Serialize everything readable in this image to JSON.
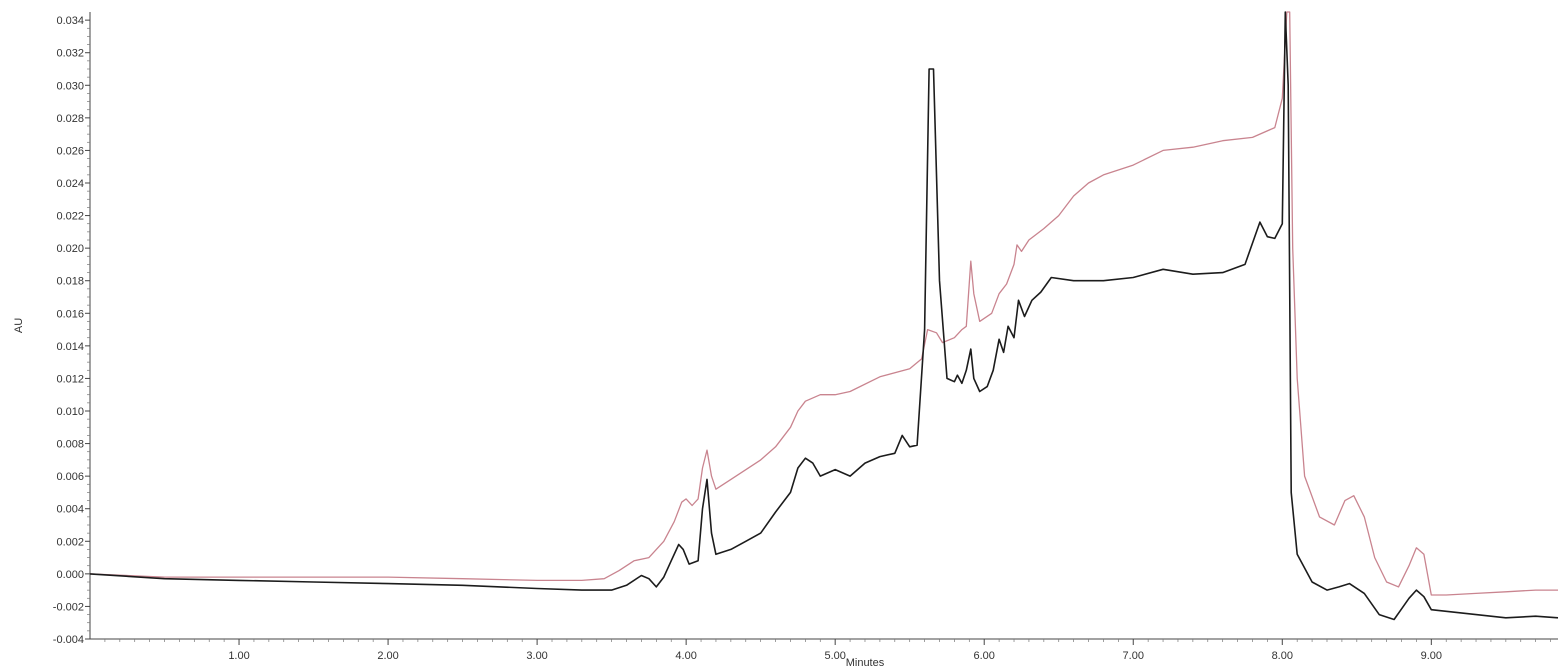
{
  "chart_data": {
    "type": "line",
    "xlabel": "Minutes",
    "ylabel": "AU",
    "xlim": [
      0.0,
      9.85
    ],
    "ylim": [
      -0.004,
      0.0345
    ],
    "x_ticks": [
      1.0,
      2.0,
      3.0,
      4.0,
      5.0,
      6.0,
      7.0,
      8.0,
      9.0
    ],
    "x_tick_labels": [
      "1.00",
      "2.00",
      "3.00",
      "4.00",
      "5.00",
      "6.00",
      "7.00",
      "8.00",
      "9.00"
    ],
    "y_ticks": [
      -0.004,
      -0.002,
      0.0,
      0.002,
      0.004,
      0.006,
      0.008,
      0.01,
      0.012,
      0.014,
      0.016,
      0.018,
      0.02,
      0.022,
      0.024,
      0.026,
      0.028,
      0.03,
      0.032,
      0.034
    ],
    "y_tick_labels": [
      "-0.004",
      "-0.002",
      "0.000",
      "0.002",
      "0.004",
      "0.006",
      "0.008",
      "0.010",
      "0.012",
      "0.014",
      "0.016",
      "0.018",
      "0.020",
      "0.022",
      "0.024",
      "0.026",
      "0.028",
      "0.030",
      "0.032",
      "0.034"
    ],
    "grid": false,
    "series": [
      {
        "color": "#c9848f",
        "points": [
          [
            0.0,
            0.0
          ],
          [
            0.5,
            -0.0002
          ],
          [
            1.0,
            -0.0002
          ],
          [
            1.5,
            -0.0002
          ],
          [
            2.0,
            -0.0002
          ],
          [
            2.5,
            -0.0003
          ],
          [
            3.0,
            -0.0004
          ],
          [
            3.3,
            -0.0004
          ],
          [
            3.45,
            -0.0003
          ],
          [
            3.55,
            0.0002
          ],
          [
            3.65,
            0.0008
          ],
          [
            3.75,
            0.001
          ],
          [
            3.85,
            0.002
          ],
          [
            3.92,
            0.0032
          ],
          [
            3.97,
            0.0044
          ],
          [
            4.0,
            0.0046
          ],
          [
            4.04,
            0.0042
          ],
          [
            4.08,
            0.0046
          ],
          [
            4.11,
            0.0065
          ],
          [
            4.14,
            0.0076
          ],
          [
            4.17,
            0.006
          ],
          [
            4.2,
            0.0052
          ],
          [
            4.3,
            0.0058
          ],
          [
            4.5,
            0.007
          ],
          [
            4.6,
            0.0078
          ],
          [
            4.7,
            0.009
          ],
          [
            4.75,
            0.01
          ],
          [
            4.8,
            0.0106
          ],
          [
            4.9,
            0.011
          ],
          [
            5.0,
            0.011
          ],
          [
            5.1,
            0.0112
          ],
          [
            5.3,
            0.0121
          ],
          [
            5.5,
            0.0126
          ],
          [
            5.58,
            0.0132
          ],
          [
            5.62,
            0.015
          ],
          [
            5.68,
            0.0148
          ],
          [
            5.72,
            0.0142
          ],
          [
            5.8,
            0.0145
          ],
          [
            5.85,
            0.015
          ],
          [
            5.88,
            0.0152
          ],
          [
            5.91,
            0.0192
          ],
          [
            5.93,
            0.0172
          ],
          [
            5.97,
            0.0155
          ],
          [
            6.05,
            0.016
          ],
          [
            6.1,
            0.0172
          ],
          [
            6.15,
            0.0178
          ],
          [
            6.2,
            0.019
          ],
          [
            6.22,
            0.0202
          ],
          [
            6.25,
            0.0198
          ],
          [
            6.3,
            0.0205
          ],
          [
            6.4,
            0.0212
          ],
          [
            6.5,
            0.022
          ],
          [
            6.6,
            0.0232
          ],
          [
            6.7,
            0.024
          ],
          [
            6.8,
            0.0245
          ],
          [
            7.0,
            0.0251
          ],
          [
            7.2,
            0.026
          ],
          [
            7.4,
            0.0262
          ],
          [
            7.6,
            0.0266
          ],
          [
            7.8,
            0.0268
          ],
          [
            7.95,
            0.0274
          ],
          [
            8.0,
            0.0292
          ],
          [
            8.03,
            0.0345
          ],
          [
            8.05,
            0.0345
          ],
          [
            8.07,
            0.02
          ],
          [
            8.1,
            0.012
          ],
          [
            8.15,
            0.006
          ],
          [
            8.25,
            0.0035
          ],
          [
            8.35,
            0.003
          ],
          [
            8.42,
            0.0045
          ],
          [
            8.48,
            0.0048
          ],
          [
            8.55,
            0.0035
          ],
          [
            8.62,
            0.001
          ],
          [
            8.7,
            -0.0005
          ],
          [
            8.78,
            -0.0008
          ],
          [
            8.85,
            0.0005
          ],
          [
            8.9,
            0.0016
          ],
          [
            8.95,
            0.0012
          ],
          [
            9.0,
            -0.0013
          ],
          [
            9.1,
            -0.0013
          ],
          [
            9.3,
            -0.0012
          ],
          [
            9.5,
            -0.0011
          ],
          [
            9.7,
            -0.001
          ],
          [
            9.85,
            -0.001
          ]
        ]
      },
      {
        "color": "#1c1c1c",
        "points": [
          [
            0.0,
            0.0
          ],
          [
            0.5,
            -0.0003
          ],
          [
            1.0,
            -0.0004
          ],
          [
            1.5,
            -0.0005
          ],
          [
            2.0,
            -0.0006
          ],
          [
            2.5,
            -0.0007
          ],
          [
            3.0,
            -0.0009
          ],
          [
            3.3,
            -0.001
          ],
          [
            3.5,
            -0.001
          ],
          [
            3.6,
            -0.0007
          ],
          [
            3.7,
            -0.0001
          ],
          [
            3.75,
            -0.0003
          ],
          [
            3.8,
            -0.0008
          ],
          [
            3.85,
            -0.0002
          ],
          [
            3.9,
            0.0008
          ],
          [
            3.95,
            0.0018
          ],
          [
            3.98,
            0.0015
          ],
          [
            4.02,
            0.0006
          ],
          [
            4.08,
            0.0008
          ],
          [
            4.11,
            0.004
          ],
          [
            4.14,
            0.0058
          ],
          [
            4.17,
            0.0025
          ],
          [
            4.2,
            0.0012
          ],
          [
            4.3,
            0.0015
          ],
          [
            4.4,
            0.002
          ],
          [
            4.5,
            0.0025
          ],
          [
            4.6,
            0.0038
          ],
          [
            4.7,
            0.005
          ],
          [
            4.75,
            0.0065
          ],
          [
            4.8,
            0.0071
          ],
          [
            4.85,
            0.0068
          ],
          [
            4.9,
            0.006
          ],
          [
            5.0,
            0.0064
          ],
          [
            5.1,
            0.006
          ],
          [
            5.2,
            0.0068
          ],
          [
            5.3,
            0.0072
          ],
          [
            5.4,
            0.0074
          ],
          [
            5.45,
            0.0085
          ],
          [
            5.5,
            0.0078
          ],
          [
            5.55,
            0.0079
          ],
          [
            5.6,
            0.015
          ],
          [
            5.63,
            0.031
          ],
          [
            5.66,
            0.031
          ],
          [
            5.7,
            0.018
          ],
          [
            5.75,
            0.012
          ],
          [
            5.8,
            0.0118
          ],
          [
            5.82,
            0.0122
          ],
          [
            5.85,
            0.0117
          ],
          [
            5.88,
            0.0125
          ],
          [
            5.91,
            0.0138
          ],
          [
            5.93,
            0.012
          ],
          [
            5.97,
            0.0112
          ],
          [
            6.02,
            0.0115
          ],
          [
            6.06,
            0.0125
          ],
          [
            6.1,
            0.0144
          ],
          [
            6.13,
            0.0136
          ],
          [
            6.16,
            0.0152
          ],
          [
            6.2,
            0.0145
          ],
          [
            6.23,
            0.0168
          ],
          [
            6.27,
            0.0158
          ],
          [
            6.32,
            0.0168
          ],
          [
            6.38,
            0.0173
          ],
          [
            6.45,
            0.0182
          ],
          [
            6.6,
            0.018
          ],
          [
            6.8,
            0.018
          ],
          [
            7.0,
            0.0182
          ],
          [
            7.2,
            0.0187
          ],
          [
            7.4,
            0.0184
          ],
          [
            7.6,
            0.0185
          ],
          [
            7.75,
            0.019
          ],
          [
            7.85,
            0.0216
          ],
          [
            7.9,
            0.0207
          ],
          [
            7.95,
            0.0206
          ],
          [
            8.0,
            0.0215
          ],
          [
            8.02,
            0.0345
          ],
          [
            8.04,
            0.03
          ],
          [
            8.06,
            0.005
          ],
          [
            8.1,
            0.0012
          ],
          [
            8.2,
            -0.0005
          ],
          [
            8.3,
            -0.001
          ],
          [
            8.38,
            -0.0008
          ],
          [
            8.45,
            -0.0006
          ],
          [
            8.55,
            -0.0012
          ],
          [
            8.65,
            -0.0025
          ],
          [
            8.75,
            -0.0028
          ],
          [
            8.85,
            -0.0015
          ],
          [
            8.9,
            -0.001
          ],
          [
            8.95,
            -0.0014
          ],
          [
            9.0,
            -0.0022
          ],
          [
            9.2,
            -0.0024
          ],
          [
            9.5,
            -0.0027
          ],
          [
            9.7,
            -0.0026
          ],
          [
            9.85,
            -0.0027
          ]
        ]
      }
    ]
  }
}
